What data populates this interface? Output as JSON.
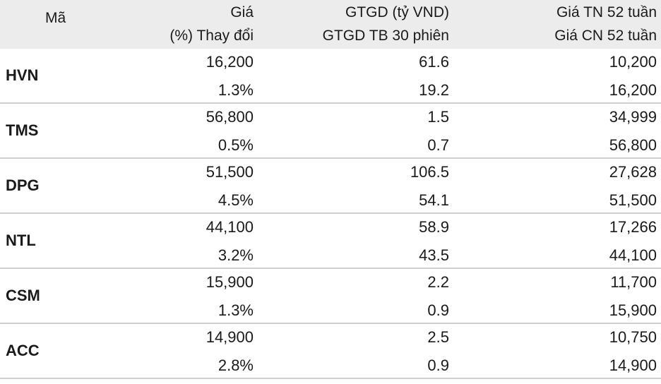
{
  "header": {
    "ma": "Mã",
    "gia_line1": "Giá",
    "gia_line2": "(%) Thay đổi",
    "gtgd_line1": "GTGD (tỷ VND)",
    "gtgd_line2": "GTGD TB 30 phiên",
    "tn_line1": "Giá TN 52 tuần",
    "tn_line2": "Giá CN 52 tuần"
  },
  "rows": [
    {
      "ticker": "HVN",
      "price": "16,200",
      "change": "1.3%",
      "gtgd": "61.6",
      "gtgd_avg": "19.2",
      "low52": "10,200",
      "high52": "16,200"
    },
    {
      "ticker": "TMS",
      "price": "56,800",
      "change": "0.5%",
      "gtgd": "1.5",
      "gtgd_avg": "0.7",
      "low52": "34,999",
      "high52": "56,800"
    },
    {
      "ticker": "DPG",
      "price": "51,500",
      "change": "4.5%",
      "gtgd": "106.5",
      "gtgd_avg": "54.1",
      "low52": "27,628",
      "high52": "51,500"
    },
    {
      "ticker": "NTL",
      "price": "44,100",
      "change": "3.2%",
      "gtgd": "58.9",
      "gtgd_avg": "43.5",
      "low52": "17,266",
      "high52": "44,100"
    },
    {
      "ticker": "CSM",
      "price": "15,900",
      "change": "1.3%",
      "gtgd": "2.2",
      "gtgd_avg": "0.9",
      "low52": "11,700",
      "high52": "15,900"
    },
    {
      "ticker": "ACC",
      "price": "14,900",
      "change": "2.8%",
      "gtgd": "2.5",
      "gtgd_avg": "0.9",
      "low52": "10,750",
      "high52": "14,900"
    }
  ]
}
